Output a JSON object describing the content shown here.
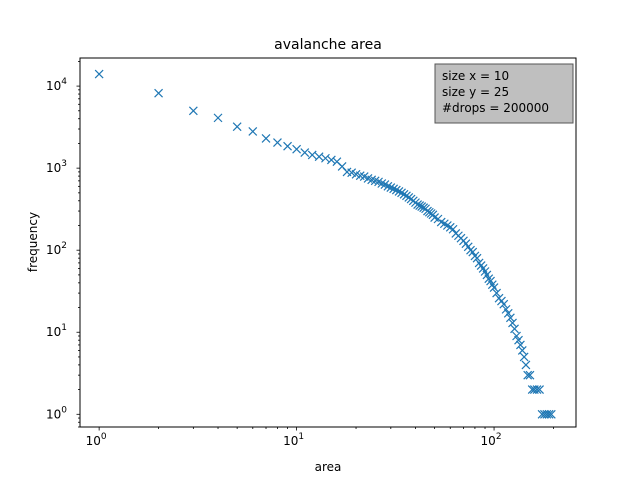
{
  "chart_data": {
    "type": "scatter",
    "title": "avalanche area",
    "xlabel": "area",
    "ylabel": "frequency",
    "xscale": "log",
    "yscale": "log",
    "xlim": [
      0.8,
      260
    ],
    "ylim": [
      0.7,
      22000
    ],
    "grid": false,
    "marker": "x",
    "marker_color": "#1f77b4",
    "x_ticks": [
      {
        "value": 1,
        "base": "10",
        "exp": "0"
      },
      {
        "value": 10,
        "base": "10",
        "exp": "1"
      },
      {
        "value": 100,
        "base": "10",
        "exp": "2"
      }
    ],
    "y_ticks": [
      {
        "value": 1,
        "base": "10",
        "exp": "0"
      },
      {
        "value": 10,
        "base": "10",
        "exp": "1"
      },
      {
        "value": 100,
        "base": "10",
        "exp": "2"
      },
      {
        "value": 1000,
        "base": "10",
        "exp": "3"
      },
      {
        "value": 10000,
        "base": "10",
        "exp": "4"
      }
    ],
    "annotation": {
      "lines": [
        "size x = 10",
        "size y = 25",
        "#drops = 200000"
      ],
      "placement": "top-right",
      "background": "#bfbfbf"
    },
    "x": [
      1,
      2,
      3,
      4,
      5,
      6,
      7,
      8,
      9,
      10,
      11,
      12,
      13,
      14,
      15,
      16,
      17,
      18,
      19,
      20,
      21,
      22,
      23,
      24,
      25,
      26,
      27,
      28,
      29,
      30,
      31,
      32,
      33,
      34,
      35,
      36,
      37,
      38,
      39,
      40,
      41,
      42,
      43,
      44,
      45,
      46,
      47,
      48,
      49,
      50,
      52,
      54,
      56,
      58,
      60,
      62,
      64,
      66,
      68,
      70,
      72,
      74,
      76,
      78,
      80,
      82,
      84,
      86,
      88,
      90,
      92,
      94,
      96,
      98,
      100,
      103,
      106,
      109,
      112,
      115,
      118,
      121,
      124,
      127,
      130,
      133,
      136,
      139,
      142,
      145,
      148,
      152,
      156,
      160,
      165,
      170,
      175,
      180,
      185,
      190,
      195
    ],
    "y": [
      14000,
      8200,
      5000,
      4100,
      3200,
      2800,
      2300,
      2050,
      1850,
      1700,
      1550,
      1450,
      1380,
      1320,
      1260,
      1200,
      1050,
      900,
      880,
      840,
      810,
      790,
      750,
      720,
      700,
      680,
      650,
      630,
      600,
      580,
      560,
      540,
      520,
      500,
      480,
      460,
      440,
      420,
      400,
      380,
      360,
      350,
      340,
      330,
      320,
      300,
      290,
      280,
      270,
      250,
      240,
      220,
      210,
      200,
      190,
      180,
      160,
      150,
      140,
      130,
      120,
      110,
      100,
      95,
      85,
      80,
      70,
      65,
      60,
      55,
      50,
      45,
      42,
      38,
      35,
      30,
      26,
      24,
      22,
      19,
      17,
      15,
      13,
      11,
      9,
      8,
      7,
      6,
      5,
      4,
      3,
      3,
      2,
      2,
      2,
      2,
      1,
      1,
      1,
      1,
      1
    ]
  }
}
